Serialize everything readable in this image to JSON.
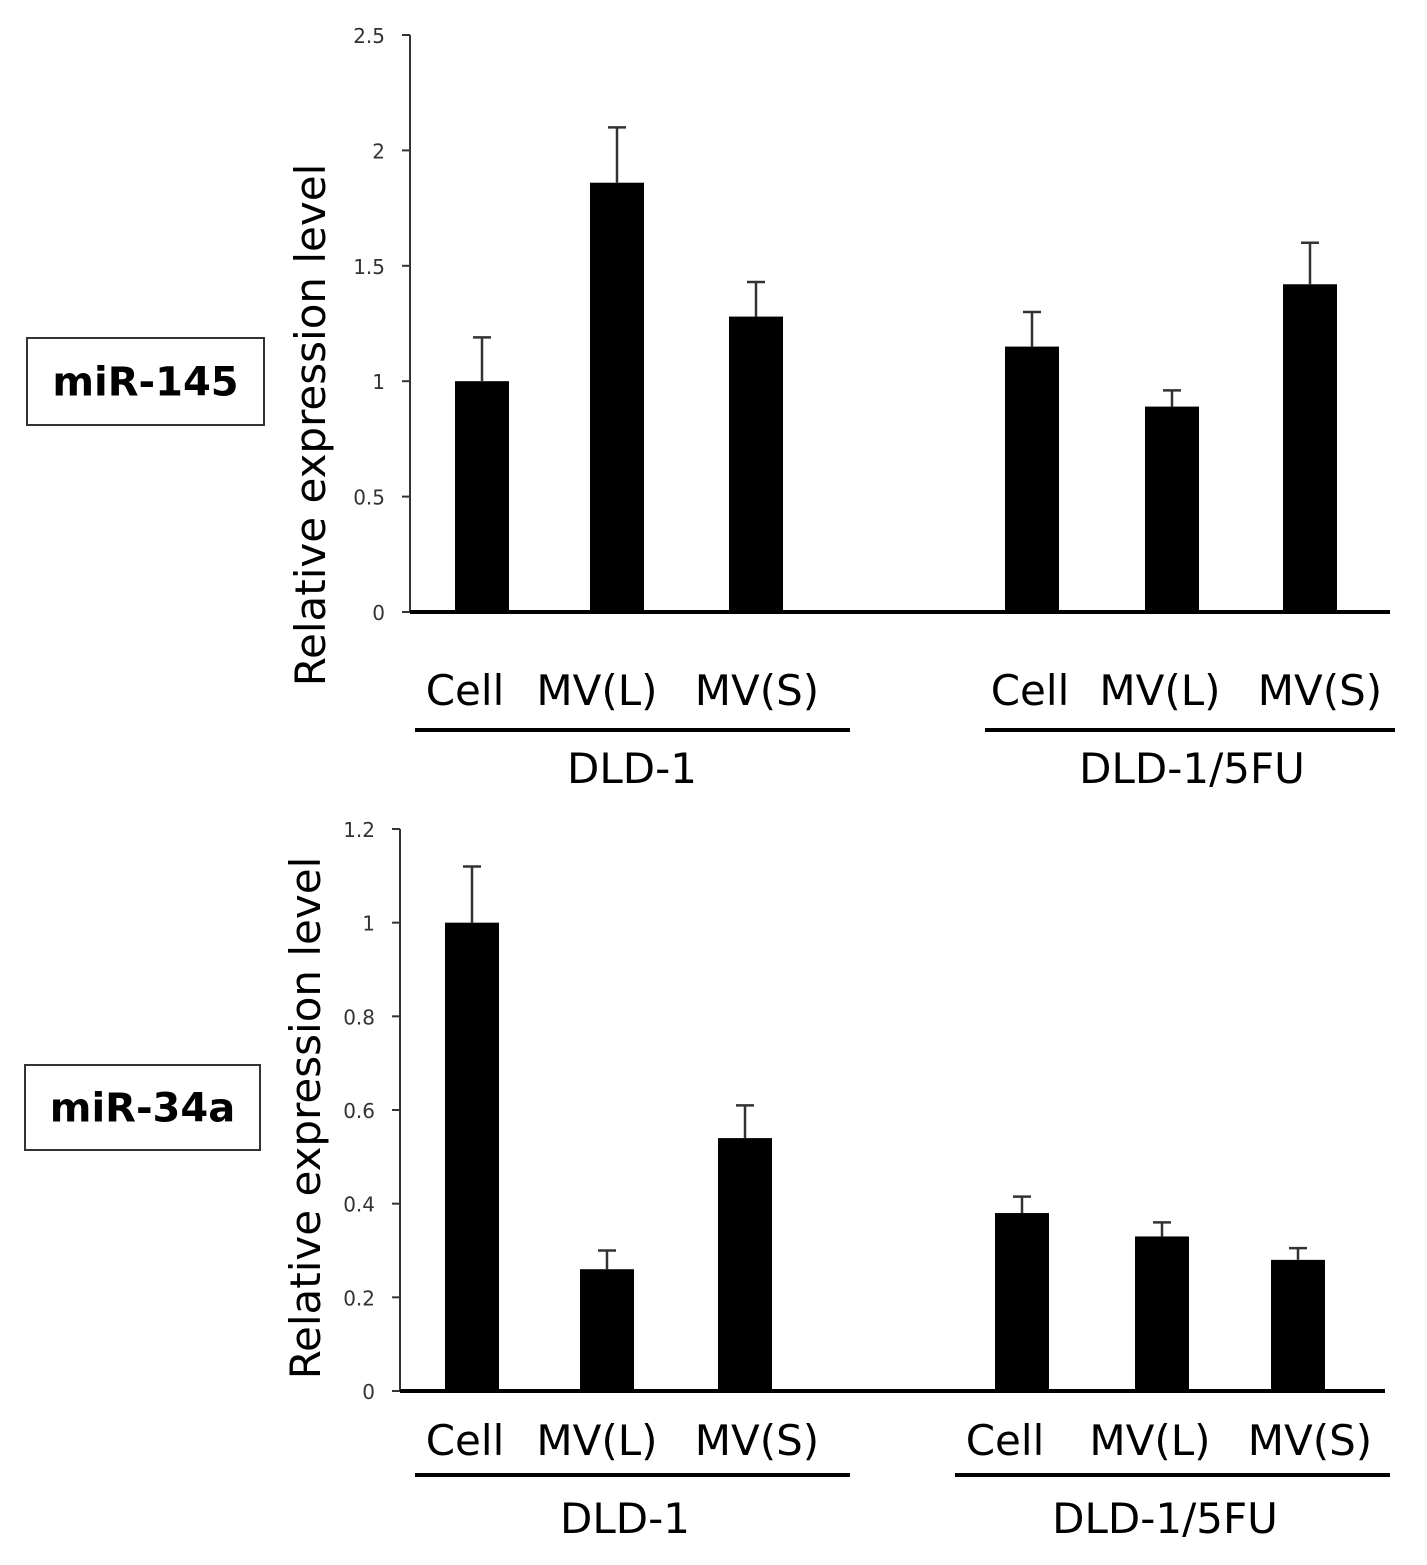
{
  "chart_data": [
    {
      "type": "bar",
      "panel_label": "miR-145",
      "ylabel": "Relative expression level",
      "ylim": [
        0,
        2.5
      ],
      "yticks": [
        "0",
        "0.5",
        "1",
        "1.5",
        "2",
        "2.5"
      ],
      "ytick_values": [
        0,
        0.5,
        1,
        1.5,
        2,
        2.5
      ],
      "categories": [
        "Cell",
        "MV(L)",
        "MV(S)",
        "Cell",
        "MV(L)",
        "MV(S)"
      ],
      "groups": [
        {
          "name": "DLD-1",
          "indices": [
            0,
            1,
            2
          ]
        },
        {
          "name": "DLD-1/5FU",
          "indices": [
            3,
            4,
            5
          ]
        }
      ],
      "values": [
        1.0,
        1.86,
        1.28,
        1.15,
        0.89,
        1.42
      ],
      "errors": [
        0.19,
        0.24,
        0.15,
        0.15,
        0.07,
        0.18
      ],
      "grid": false,
      "bar_color": "#000000"
    },
    {
      "type": "bar",
      "panel_label": "miR-34a",
      "ylabel": "Relative expression level",
      "ylim": [
        0,
        1.2
      ],
      "yticks": [
        "0",
        "0.2",
        "0.4",
        "0.6",
        "0.8",
        "1",
        "1.2"
      ],
      "ytick_values": [
        0,
        0.2,
        0.4,
        0.6,
        0.8,
        1.0,
        1.2
      ],
      "categories": [
        "Cell",
        "MV(L)",
        "MV(S)",
        "Cell",
        "MV(L)",
        "MV(S)"
      ],
      "groups": [
        {
          "name": "DLD-1",
          "indices": [
            0,
            1,
            2
          ]
        },
        {
          "name": "DLD-1/5FU",
          "indices": [
            3,
            4,
            5
          ]
        }
      ],
      "values": [
        1.0,
        0.26,
        0.54,
        0.38,
        0.33,
        0.28
      ],
      "errors": [
        0.12,
        0.04,
        0.07,
        0.035,
        0.03,
        0.025
      ],
      "grid": false,
      "bar_color": "#000000"
    }
  ]
}
